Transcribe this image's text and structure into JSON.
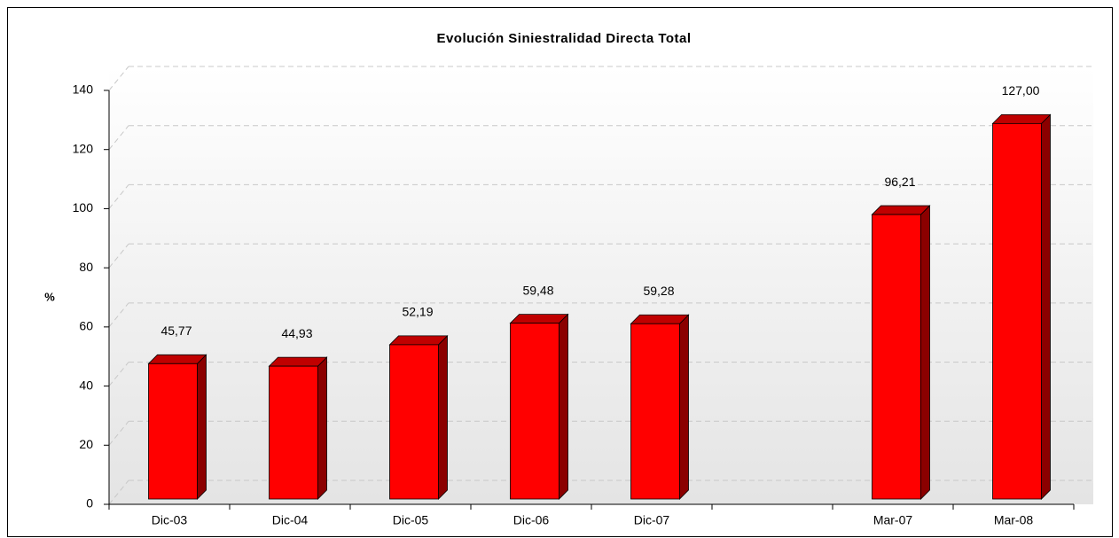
{
  "chart_data": {
    "type": "bar3d",
    "title": "Evolución Siniestralidad Directa Total",
    "y_label": "%",
    "categories": [
      "Dic-03",
      "Dic-04",
      "Dic-05",
      "Dic-06",
      "Dic-07",
      null,
      "Mar-07",
      "Mar-08"
    ],
    "values": [
      45.77,
      44.93,
      52.19,
      59.48,
      59.28,
      null,
      96.21,
      127.0
    ],
    "value_labels": [
      "45,77",
      "44,93",
      "52,19",
      "59,48",
      "59,28",
      null,
      "96,21",
      "127,00"
    ],
    "color": "#ff0000",
    "ylim": [
      0,
      140
    ],
    "yticks": [
      0,
      20,
      40,
      60,
      80,
      100,
      120,
      140
    ],
    "grid": true
  }
}
